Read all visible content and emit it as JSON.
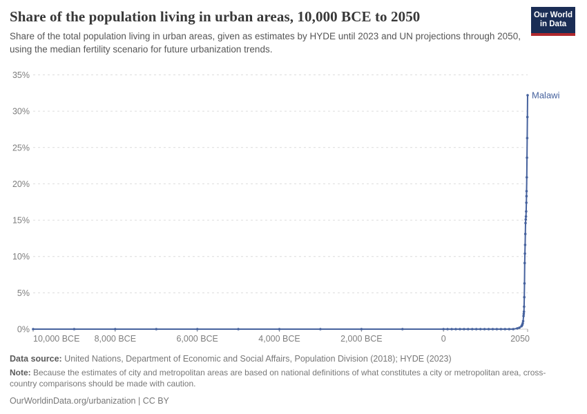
{
  "header": {
    "title": "Share of the population living in urban areas, 10,000 BCE to 2050",
    "subtitle": "Share of the total population living in urban areas, given as estimates by HYDE until 2023 and UN projections through 2050, using the median fertility scenario for future urbanization trends."
  },
  "logo": {
    "line1": "Our World",
    "line2": "in Data",
    "bg_color": "#1A2D55",
    "bar_color": "#B0282D"
  },
  "chart_data": {
    "type": "line",
    "title": "Share of the population living in urban areas, 10,000 BCE to 2050",
    "xlabel": "",
    "ylabel": "",
    "xlim": [
      -10000,
      2050
    ],
    "ylim": [
      0,
      35
    ],
    "grid": "horizontal-dashed",
    "legend_position": "end-of-line-label",
    "grid_color": "#dcdcdc",
    "axis_color": "#cccccc",
    "tick_color": "#999999",
    "tick_label_color": "#7d7d7d",
    "x_ticks": [
      {
        "value": -10000,
        "label": "10,000 BCE"
      },
      {
        "value": -8000,
        "label": "8,000 BCE"
      },
      {
        "value": -6000,
        "label": "6,000 BCE"
      },
      {
        "value": -4000,
        "label": "4,000 BCE"
      },
      {
        "value": -2000,
        "label": "2,000 BCE"
      },
      {
        "value": 0,
        "label": "0"
      },
      {
        "value": 2050,
        "label": "2050"
      }
    ],
    "y_ticks": [
      {
        "value": 0,
        "label": "0%"
      },
      {
        "value": 5,
        "label": "5%"
      },
      {
        "value": 10,
        "label": "10%"
      },
      {
        "value": 15,
        "label": "15%"
      },
      {
        "value": 20,
        "label": "20%"
      },
      {
        "value": 25,
        "label": "25%"
      },
      {
        "value": 30,
        "label": "30%"
      },
      {
        "value": 35,
        "label": "35%"
      }
    ],
    "series": [
      {
        "name": "Malawi",
        "color": "#45619D",
        "points": [
          [
            -10000,
            0
          ],
          [
            -9000,
            0
          ],
          [
            -8000,
            0
          ],
          [
            -7000,
            0
          ],
          [
            -6000,
            0
          ],
          [
            -5000,
            0
          ],
          [
            -4000,
            0
          ],
          [
            -3000,
            0
          ],
          [
            -2000,
            0
          ],
          [
            -1000,
            0
          ],
          [
            0,
            0
          ],
          [
            100,
            0
          ],
          [
            200,
            0
          ],
          [
            300,
            0
          ],
          [
            400,
            0
          ],
          [
            500,
            0
          ],
          [
            600,
            0
          ],
          [
            700,
            0
          ],
          [
            800,
            0
          ],
          [
            900,
            0
          ],
          [
            1000,
            0
          ],
          [
            1100,
            0
          ],
          [
            1200,
            0
          ],
          [
            1300,
            0
          ],
          [
            1400,
            0
          ],
          [
            1500,
            0
          ],
          [
            1600,
            0
          ],
          [
            1700,
            0
          ],
          [
            1800,
            0.1
          ],
          [
            1850,
            0.2
          ],
          [
            1900,
            0.4
          ],
          [
            1910,
            0.5
          ],
          [
            1920,
            0.6
          ],
          [
            1930,
            0.8
          ],
          [
            1940,
            1.1
          ],
          [
            1950,
            1.8
          ],
          [
            1955,
            2.1
          ],
          [
            1960,
            2.4
          ],
          [
            1965,
            3.1
          ],
          [
            1970,
            4.4
          ],
          [
            1975,
            6.3
          ],
          [
            1980,
            9.1
          ],
          [
            1985,
            10.4
          ],
          [
            1990,
            11.6
          ],
          [
            1995,
            13.1
          ],
          [
            2000,
            14.6
          ],
          [
            2005,
            15.1
          ],
          [
            2010,
            15.5
          ],
          [
            2015,
            16.2
          ],
          [
            2020,
            17.4
          ],
          [
            2023,
            18.3
          ],
          [
            2025,
            19.0
          ],
          [
            2030,
            20.9
          ],
          [
            2035,
            23.6
          ],
          [
            2040,
            26.3
          ],
          [
            2045,
            29.2
          ],
          [
            2050,
            32.2
          ]
        ]
      }
    ]
  },
  "footer": {
    "data_source_label": "Data source:",
    "data_source_text": " United Nations, Department of Economic and Social Affairs, Population Division (2018); HYDE (2023)",
    "note_label": "Note:",
    "note_text": " Because the estimates of city and metropolitan areas are based on national definitions of what constitutes a city or metropolitan area, cross-country comparisons should be made with caution.",
    "link": "OurWorldinData.org/urbanization | CC BY"
  }
}
